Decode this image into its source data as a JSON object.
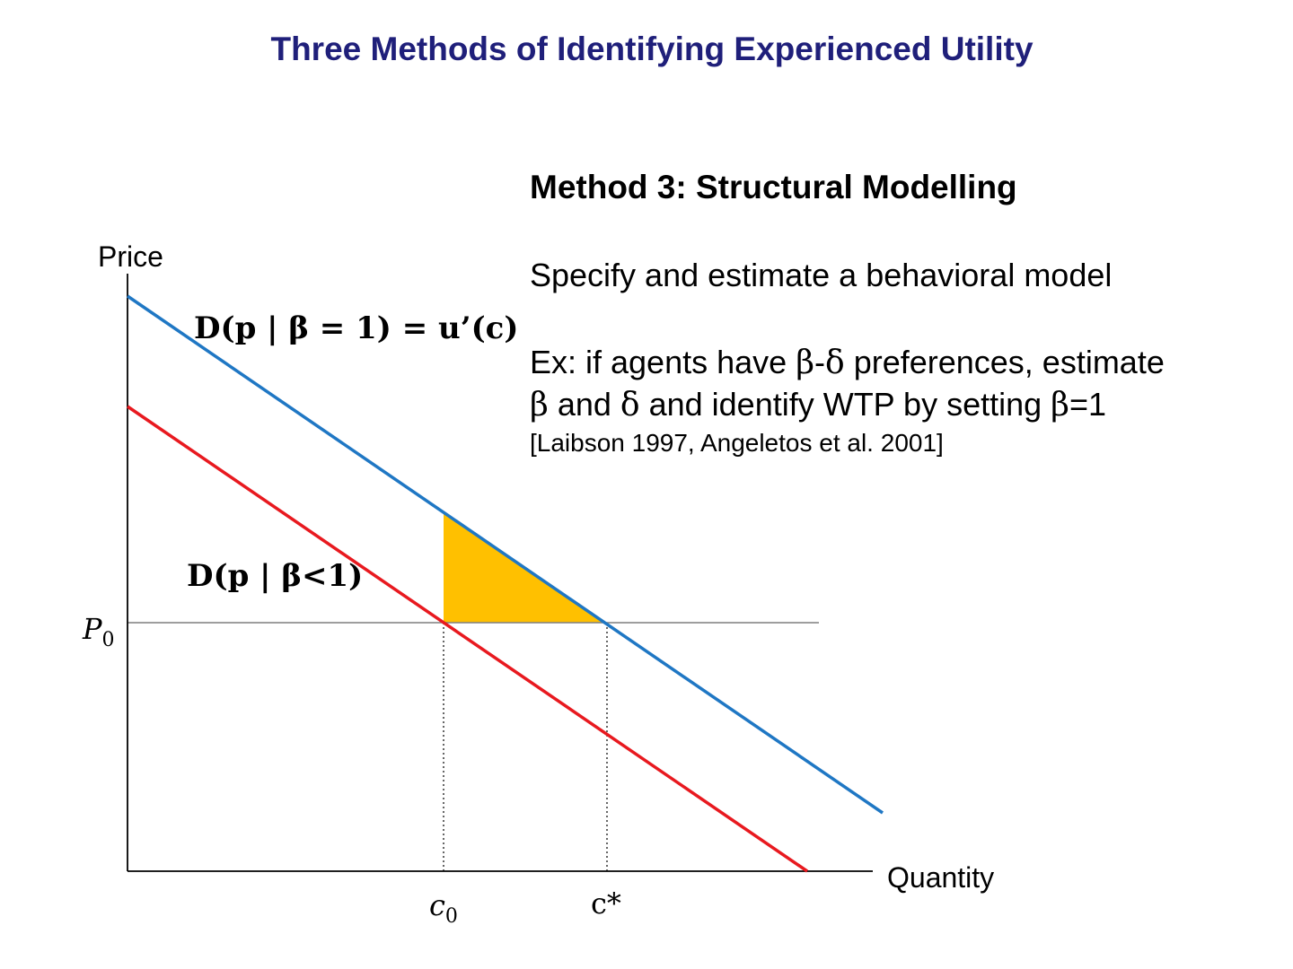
{
  "slide": {
    "title": "Three Methods of Identifying Experienced Utility",
    "method_heading": "Method 3: Structural Modelling",
    "text": {
      "line1": "Specify and estimate a behavioral model",
      "line2_a": "Ex: if agents have ",
      "line2_beta": "β",
      "line2_dash": "-",
      "line2_delta": "δ",
      "line2_b": " preferences, estimate",
      "line3_beta": "β",
      "line3_a": " and ",
      "line3_delta": "δ",
      "line3_b": " and identify WTP by setting ",
      "line3_beta2": "β",
      "line3_c": "=1",
      "citation": "[Laibson 1997, Angeletos et al. 2001]"
    }
  },
  "diagram": {
    "y_axis_label": "Price",
    "x_axis_label": "Quantity",
    "curve_upper_label": "D(p | β = 1) = u’(c)",
    "curve_lower_label": "D(p | β<1)",
    "price_tick_main": "P",
    "price_tick_sub": "0",
    "c0_main": "c",
    "c0_sub": "0",
    "cstar_label": "c*",
    "colors": {
      "upper_curve": "#1f77c4",
      "lower_curve": "#e8191f",
      "triangle_fill": "#ffc000",
      "axis": "#000000",
      "guide": "#7f7f7f"
    }
  }
}
